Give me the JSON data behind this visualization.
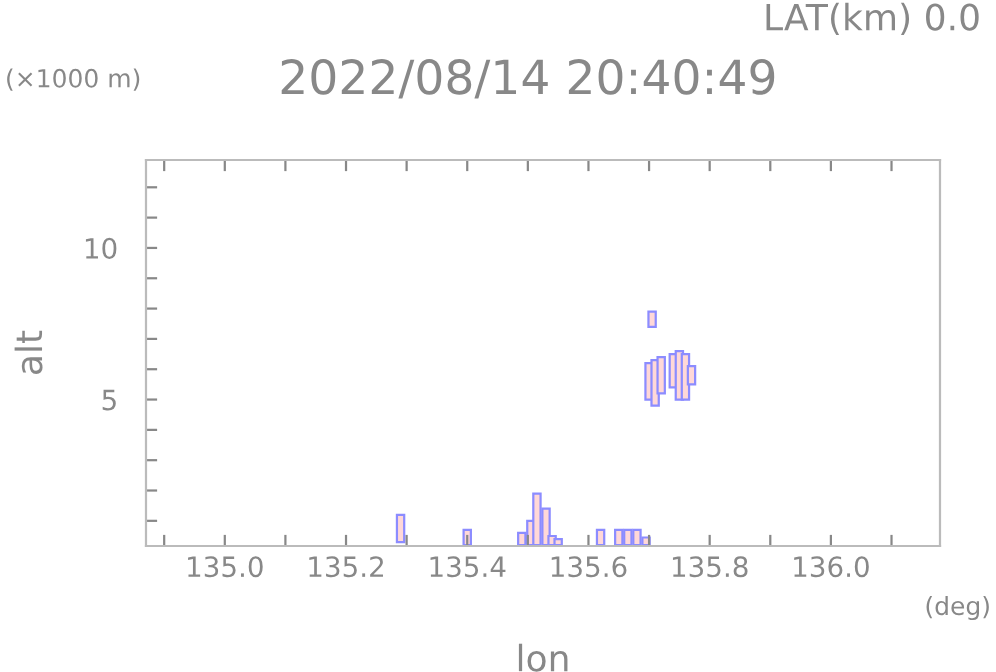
{
  "chart_data": {
    "type": "bar",
    "title": "2022/08/14 20:40:49",
    "subtitle": "LAT(km) 0.0",
    "xlabel": "lon",
    "ylabel": "alt",
    "annotations": [
      "(×1000 m)",
      "(deg)"
    ],
    "x": [
      135.29,
      135.4,
      135.49,
      135.505,
      135.515,
      135.53,
      135.54,
      135.55,
      135.62,
      135.65,
      135.665,
      135.68,
      135.695,
      135.7,
      135.705,
      135.71,
      135.72,
      135.74,
      135.75,
      135.76,
      135.77
    ],
    "base": [
      0.3,
      0.2,
      0.2,
      0.2,
      0.2,
      0.2,
      0.2,
      0.2,
      0.2,
      0.2,
      0.2,
      0.2,
      0.2,
      5.0,
      7.4,
      4.8,
      5.2,
      5.4,
      5.0,
      5.0,
      5.5
    ],
    "values": [
      0.9,
      0.5,
      0.4,
      0.8,
      1.7,
      1.2,
      0.3,
      0.2,
      0.5,
      0.5,
      0.5,
      0.5,
      0.25,
      1.2,
      0.5,
      1.5,
      1.2,
      1.1,
      1.6,
      1.5,
      0.6
    ],
    "color": "#ffd8d8",
    "xlim": [
      134.87,
      136.18
    ],
    "ylim": [
      0.17,
      12.9
    ],
    "xticks": [
      {
        "value": 134.9,
        "label": null
      },
      {
        "value": 135.0,
        "label": "135.0"
      },
      {
        "value": 135.1,
        "label": null
      },
      {
        "value": 135.2,
        "label": "135.2"
      },
      {
        "value": 135.3,
        "label": null
      },
      {
        "value": 135.4,
        "label": "135.4"
      },
      {
        "value": 135.5,
        "label": null
      },
      {
        "value": 135.6,
        "label": "135.6"
      },
      {
        "value": 135.7,
        "label": null
      },
      {
        "value": 135.8,
        "label": "135.8"
      },
      {
        "value": 135.9,
        "label": null
      },
      {
        "value": 136.0,
        "label": "136.0"
      },
      {
        "value": 136.1,
        "label": null
      }
    ],
    "yticks": [
      {
        "value": 1,
        "label": null
      },
      {
        "value": 2,
        "label": null
      },
      {
        "value": 3,
        "label": null
      },
      {
        "value": 4,
        "label": null
      },
      5,
      {
        "value": 6,
        "label": null
      },
      {
        "value": 7,
        "label": null
      },
      {
        "value": 8,
        "label": null
      },
      {
        "value": 9,
        "label": null
      },
      10,
      {
        "value": 11,
        "label": null
      },
      {
        "value": 12,
        "label": null
      }
    ],
    "grid": false
  }
}
